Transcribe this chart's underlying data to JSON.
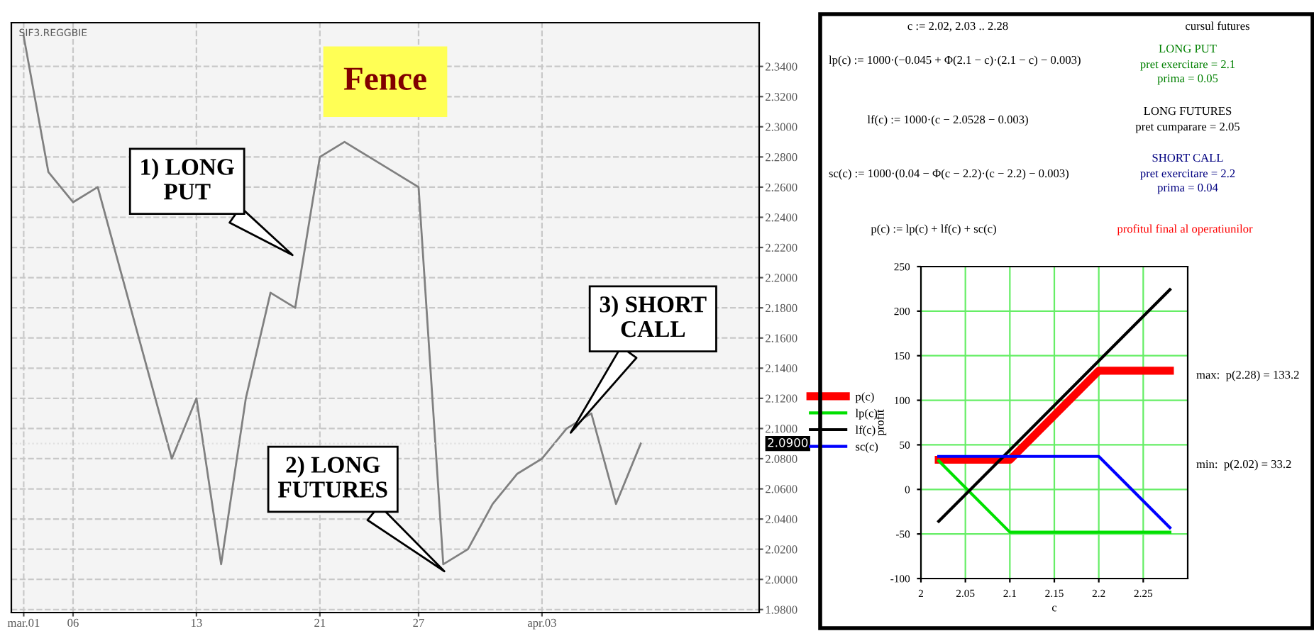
{
  "chart_data": [
    {
      "type": "line",
      "title": "Fence",
      "categories": [
        "mar.01",
        null,
        "06",
        null,
        null,
        null,
        null,
        "13",
        null,
        null,
        null,
        null,
        "21",
        null,
        null,
        null,
        "27",
        null,
        null,
        null,
        null,
        "apr.03",
        null,
        null,
        null,
        null
      ],
      "series": [
        {
          "color": "#808080",
          "values": [
            2.36,
            2.27,
            2.25,
            2.26,
            2.2,
            2.14,
            2.08,
            2.12,
            2.01,
            2.12,
            2.19,
            2.18,
            2.28,
            2.29,
            2.28,
            2.27,
            2.26,
            2.01,
            2.02,
            2.05,
            2.07,
            2.08,
            2.1,
            2.11,
            2.05,
            2.09
          ]
        }
      ],
      "ylim": [
        1.978,
        2.369
      ],
      "yticks": [
        {
          "value": 1.98,
          "label": "1.9800"
        },
        {
          "value": 2.0,
          "label": "2.0000"
        },
        {
          "value": 2.02,
          "label": "2.0200"
        },
        {
          "value": 2.04,
          "label": "2.0400"
        },
        {
          "value": 2.06,
          "label": "2.0600"
        },
        {
          "value": 2.08,
          "label": "2.0800"
        },
        {
          "value": 2.1,
          "label": "2.1000"
        },
        {
          "value": 2.12,
          "label": "2.1200"
        },
        {
          "value": 2.14,
          "label": "2.1400"
        },
        {
          "value": 2.16,
          "label": "2.1600"
        },
        {
          "value": 2.18,
          "label": "2.1800"
        },
        {
          "value": 2.2,
          "label": "2.2000"
        },
        {
          "value": 2.22,
          "label": "2.2200"
        },
        {
          "value": 2.24,
          "label": "2.2400"
        },
        {
          "value": 2.26,
          "label": "2.2600"
        },
        {
          "value": 2.28,
          "label": "2.2800"
        },
        {
          "value": 2.3,
          "label": "2.3000"
        },
        {
          "value": 2.32,
          "label": "2.3200"
        },
        {
          "value": 2.34,
          "label": "2.3400"
        }
      ],
      "annotations": [
        "SIF3.REGGBIE",
        "1) LONG\nPUT",
        "2) LONG\nFUTURES",
        "3) SHORT\nCALL"
      ],
      "ref_lines": [
        {
          "axis": "y",
          "value": 2.09,
          "label": "2.0900",
          "color": "#e0e0e0",
          "line_style": "dotted"
        }
      ],
      "grid": true,
      "marker": "none",
      "line_style": "solid"
    },
    {
      "type": "line",
      "xlabel": "c",
      "ylabel": "profit",
      "x": [
        2.02,
        2.1,
        2.2,
        2.28
      ],
      "series": [
        {
          "name": "p(c)",
          "color": "#ff0000",
          "values": [
            33.2,
            33.2,
            133.2,
            133.2
          ]
        },
        {
          "name": "lp(c)",
          "color": "#00e000",
          "values": [
            32,
            -48,
            -48,
            -48
          ]
        },
        {
          "name": "lf(c)",
          "color": "#000000",
          "values": [
            -35.8,
            44.2,
            144.2,
            224.2
          ]
        },
        {
          "name": "sc(c)",
          "color": "#0000ff",
          "values": [
            37,
            37,
            37,
            -43
          ]
        }
      ],
      "xlim": [
        2,
        2.3
      ],
      "xticks": [
        2,
        2.05,
        2.1,
        2.15,
        2.2,
        2.25
      ],
      "ylim": [
        -100,
        250
      ],
      "yticks": [
        -100,
        -50,
        0,
        50,
        100,
        150,
        200,
        250
      ],
      "annotations": [
        "c := 2.02, 2.03 .. 2.28",
        "cursul futures",
        "lp(c) := 1000·(−0.045 + Φ(2.1 − c)·(2.1 − c) − 0.003)",
        "LONG PUT",
        "pret exercitare = 2.1",
        "prima = 0.05",
        "lf(c) := 1000·(c − 2.0528 − 0.003)",
        "LONG FUTURES",
        "pret cumparare = 2.05",
        "sc(c) := 1000·(0.04 − Φ(c − 2.2)·(c − 2.2) − 0.003)",
        "SHORT CALL",
        "pret exercitare = 2.2",
        "prima = 0.04",
        "p(c) := lp(c) + lf(c) + sc(c)",
        "profitul final al operatiunilor",
        "max:  p(2.28) = 133.2",
        "min:  p(2.02) = 33.2"
      ],
      "grid": true,
      "legend": "left",
      "marker": "none",
      "line_style": "solid"
    }
  ]
}
